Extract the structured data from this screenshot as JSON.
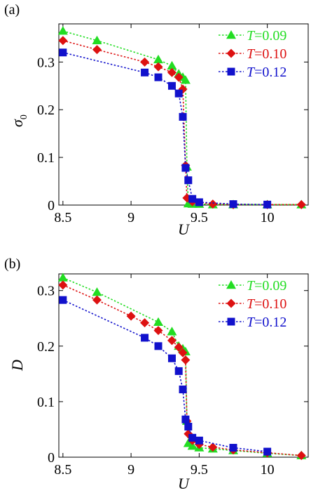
{
  "chart_data": [
    {
      "type": "line",
      "panel_label": "(a)",
      "xlabel": "U",
      "ylabel": "σ",
      "ylabel_sub": "0",
      "xlim": [
        8.47,
        10.3
      ],
      "ylim": [
        0,
        0.38
      ],
      "xticks": [
        8.5,
        9,
        9.5,
        10
      ],
      "xtick_labels": [
        "8.5",
        "9",
        "9.5",
        "10"
      ],
      "yticks": [
        0,
        0.1,
        0.2,
        0.3
      ],
      "ytick_labels": [
        "0",
        "0.1",
        "0.2",
        "0.3"
      ],
      "grid": false,
      "legend_position": "top-right",
      "series": [
        {
          "name": "T=0.09",
          "legend_var": "T",
          "legend_val": "=0.09",
          "color": "#22dd22",
          "marker": "triangle",
          "x": [
            8.5,
            8.75,
            9.2,
            9.3,
            9.35,
            9.38,
            9.4,
            9.41,
            9.42,
            9.45,
            9.5,
            9.6,
            9.75,
            10.0,
            10.25
          ],
          "y": [
            0.365,
            0.345,
            0.305,
            0.292,
            0.275,
            0.268,
            0.262,
            0.08,
            0.003,
            0.002,
            0.002,
            0.001,
            0.001,
            0.001,
            0.001
          ]
        },
        {
          "name": "T=0.10",
          "legend_var": "T",
          "legend_val": "=0.10",
          "color": "#dd1111",
          "marker": "diamond",
          "x": [
            8.5,
            8.75,
            9.1,
            9.2,
            9.3,
            9.35,
            9.38,
            9.4,
            9.41,
            9.45,
            9.6,
            9.75,
            10.0,
            10.25
          ],
          "y": [
            0.345,
            0.326,
            0.3,
            0.29,
            0.278,
            0.268,
            0.243,
            0.083,
            0.015,
            0.007,
            0.002,
            0.001,
            0.001,
            0.001
          ]
        },
        {
          "name": "T=0.12",
          "legend_var": "T",
          "legend_val": "=0.12",
          "color": "#1111cc",
          "marker": "square",
          "x": [
            8.5,
            9.1,
            9.2,
            9.3,
            9.35,
            9.38,
            9.4,
            9.42,
            9.45,
            9.5,
            9.75,
            10.0
          ],
          "y": [
            0.32,
            0.278,
            0.268,
            0.25,
            0.234,
            0.185,
            0.078,
            0.052,
            0.013,
            0.006,
            0.002,
            0.001
          ]
        }
      ]
    },
    {
      "type": "line",
      "panel_label": "(b)",
      "xlabel": "U",
      "ylabel": "D",
      "ylabel_sub": "",
      "xlim": [
        8.47,
        10.3
      ],
      "ylim": [
        0,
        0.33
      ],
      "xticks": [
        8.5,
        9,
        9.5,
        10
      ],
      "xtick_labels": [
        "8.5",
        "9",
        "9.5",
        "10"
      ],
      "yticks": [
        0,
        0.1,
        0.2,
        0.3
      ],
      "ytick_labels": [
        "0",
        "0.1",
        "0.2",
        "0.3"
      ],
      "grid": false,
      "legend_position": "top-right",
      "series": [
        {
          "name": "T=0.09",
          "legend_var": "T",
          "legend_val": "=0.09",
          "color": "#22dd22",
          "marker": "triangle",
          "x": [
            8.5,
            8.75,
            9.2,
            9.3,
            9.35,
            9.38,
            9.4,
            9.41,
            9.42,
            9.45,
            9.5,
            9.6,
            9.75,
            10.0,
            10.25
          ],
          "y": [
            0.323,
            0.297,
            0.243,
            0.226,
            0.2,
            0.195,
            0.19,
            0.065,
            0.025,
            0.02,
            0.017,
            0.015,
            0.012,
            0.007,
            0.003
          ]
        },
        {
          "name": "T=0.10",
          "legend_var": "T",
          "legend_val": "=0.10",
          "color": "#dd1111",
          "marker": "diamond",
          "x": [
            8.5,
            8.75,
            9.0,
            9.1,
            9.2,
            9.3,
            9.35,
            9.38,
            9.4,
            9.41,
            9.42,
            9.45,
            9.5,
            9.6,
            9.75,
            10.0,
            10.25
          ],
          "y": [
            0.31,
            0.283,
            0.254,
            0.242,
            0.228,
            0.21,
            0.198,
            0.188,
            0.175,
            0.065,
            0.042,
            0.03,
            0.023,
            0.018,
            0.013,
            0.008,
            0.003
          ]
        },
        {
          "name": "T=0.12",
          "legend_var": "T",
          "legend_val": "=0.12",
          "color": "#1111cc",
          "marker": "square",
          "x": [
            8.5,
            9.1,
            9.2,
            9.3,
            9.35,
            9.38,
            9.4,
            9.42,
            9.45,
            9.5,
            9.75,
            10.0
          ],
          "y": [
            0.283,
            0.215,
            0.2,
            0.178,
            0.155,
            0.122,
            0.068,
            0.055,
            0.035,
            0.03,
            0.017,
            0.01
          ]
        }
      ]
    }
  ]
}
